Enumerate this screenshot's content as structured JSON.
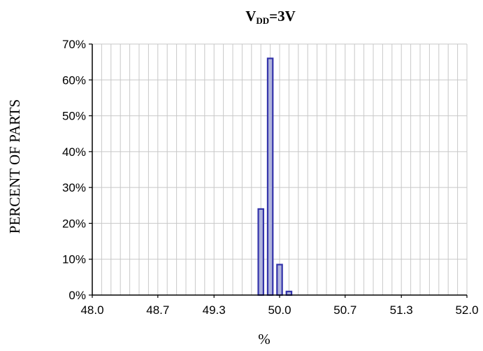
{
  "chart_data": {
    "type": "bar",
    "title_main": "V",
    "title_sub": "DD",
    "title_rest": "=3V",
    "xlabel": "%",
    "ylabel": "PERCENT OF PARTS",
    "xlim": [
      48.0,
      52.0
    ],
    "ylim": [
      0,
      70
    ],
    "x_ticks": [
      48.0,
      48.7,
      49.3,
      50.0,
      50.7,
      51.3,
      52.0
    ],
    "x_tick_labels": [
      "48.0",
      "48.7",
      "49.3",
      "50.0",
      "50.7",
      "51.3",
      "52.0"
    ],
    "y_ticks": [
      0,
      10,
      20,
      30,
      40,
      50,
      60,
      70
    ],
    "y_tick_labels": [
      "0%",
      "10%",
      "20%",
      "30%",
      "40%",
      "50%",
      "60%",
      "70%"
    ],
    "bin_width": 0.1,
    "x": [
      49.8,
      49.9,
      50.0,
      50.1
    ],
    "values": [
      24,
      66,
      8.5,
      1
    ],
    "grid": true,
    "bar_color": "#3333aa",
    "bar_fill": "#b0b4dc"
  }
}
